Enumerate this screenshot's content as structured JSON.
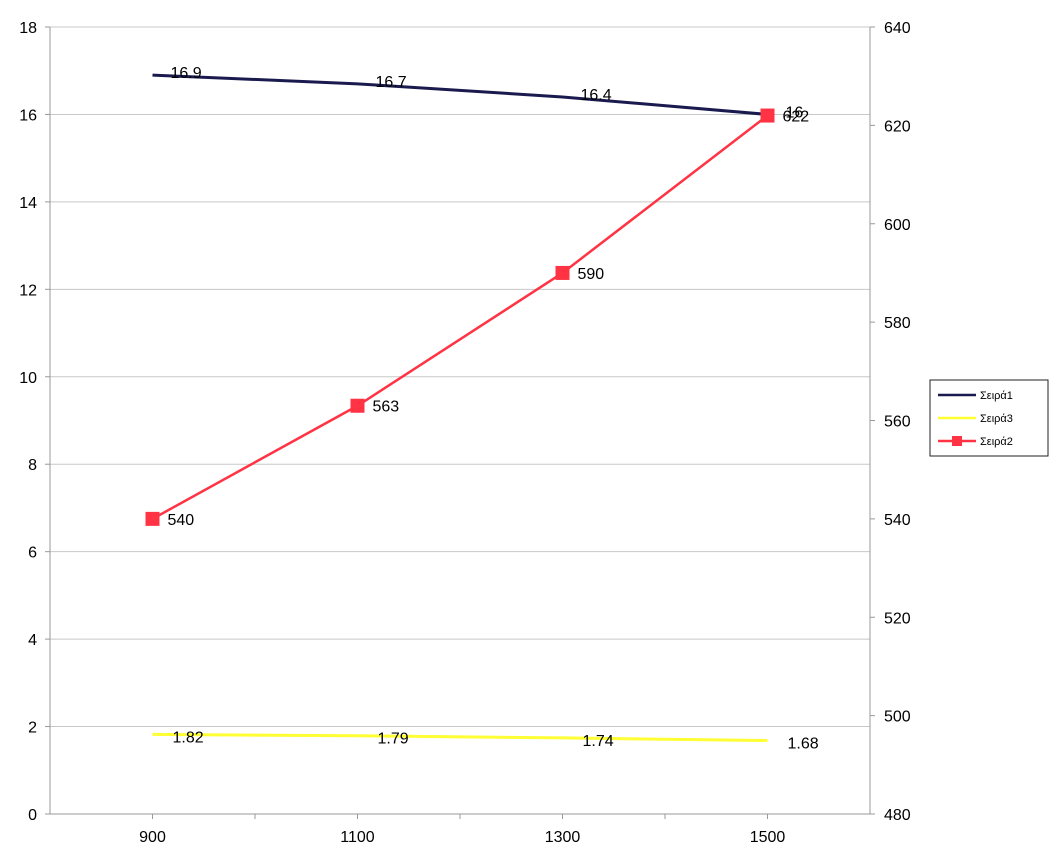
{
  "chart_data": {
    "type": "line",
    "title": "",
    "xlabel": "",
    "ylabel": "",
    "y2label": "",
    "categories": [
      "900",
      "1100",
      "1300",
      "1500"
    ],
    "x": [
      900,
      1100,
      1300,
      1500
    ],
    "xlim": [
      800,
      1600
    ],
    "x_ticks": [
      900,
      1100,
      1300,
      1500
    ],
    "ylim": [
      0,
      18
    ],
    "y_ticks": [
      0,
      2,
      4,
      6,
      8,
      10,
      12,
      14,
      16,
      18
    ],
    "y2lim": [
      480,
      640
    ],
    "y2_ticks": [
      480,
      500,
      520,
      540,
      560,
      580,
      600,
      620,
      640
    ],
    "grid": "horizontal",
    "legend_position": "right",
    "series": [
      {
        "name": "Σειρά1",
        "axis": "left",
        "values": [
          16.9,
          16.7,
          16.4,
          16
        ],
        "labels": [
          "16.9",
          "16.7",
          "16.4",
          "16"
        ],
        "color": "#1a1a4e",
        "marker": "none"
      },
      {
        "name": "Σειρά3",
        "axis": "left",
        "values": [
          1.82,
          1.79,
          1.74,
          1.68
        ],
        "labels": [
          "1.82",
          "1.79",
          "1.74",
          "1.68"
        ],
        "color": "#ffff33",
        "marker": "none"
      },
      {
        "name": "Σειρά2",
        "axis": "right",
        "values": [
          540,
          563,
          590,
          622
        ],
        "labels": [
          "540",
          "563",
          "590",
          "622"
        ],
        "color": "#ff3344",
        "marker": "square"
      }
    ]
  }
}
